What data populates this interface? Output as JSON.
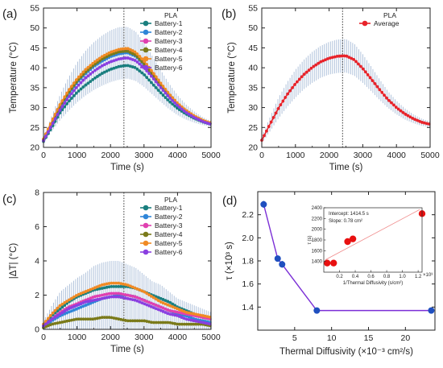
{
  "colors": {
    "battery_1": "#1a7f7f",
    "battery_2": "#2f86d8",
    "battery_3": "#e040b0",
    "battery_4": "#7a7a1a",
    "battery_5": "#f08a24",
    "battery_6": "#8a3fe0",
    "average": "#e8232a",
    "errorbar": "#a9bdd8",
    "panel_d_line": "#7b2fd6",
    "panel_d_marker": "#1f4fbf",
    "inset_points": "#e81010",
    "inset_line": "#f08c8c"
  },
  "chart_data": [
    {
      "panel": "(a)",
      "type": "line",
      "legend_title": "PLA",
      "legend_placement": "top-right",
      "xlabel": "Time (s)",
      "ylabel": "Temperature (°C)",
      "xlim": [
        0,
        5000
      ],
      "ylim": [
        20,
        55
      ],
      "xticks": [
        "0",
        "1000",
        "2000",
        "3000",
        "4000",
        "5000"
      ],
      "yticks": [
        "20",
        "25",
        "30",
        "35",
        "40",
        "45",
        "50",
        "55"
      ],
      "vline_x": 2400,
      "x": [
        0,
        250,
        500,
        750,
        1000,
        1250,
        1500,
        1750,
        2000,
        2250,
        2500,
        2750,
        3000,
        3250,
        3500,
        3750,
        4000,
        4250,
        4500,
        4750,
        5000
      ],
      "series": [
        {
          "name": "Battery-1",
          "color_key": "battery_1",
          "values": [
            21.5,
            25.0,
            28.8,
            31.5,
            33.8,
            35.6,
            37.2,
            38.6,
            39.6,
            40.3,
            40.6,
            40.0,
            38.3,
            36.0,
            33.7,
            31.6,
            29.8,
            28.4,
            27.3,
            26.4,
            25.8
          ]
        },
        {
          "name": "Battery-2",
          "color_key": "battery_2",
          "values": [
            21.8,
            26.0,
            30.1,
            33.4,
            36.2,
            38.5,
            40.3,
            41.7,
            42.8,
            43.5,
            43.8,
            42.9,
            40.8,
            38.2,
            35.5,
            32.9,
            30.7,
            29.0,
            27.6,
            26.6,
            25.9
          ]
        },
        {
          "name": "Battery-3",
          "color_key": "battery_3",
          "values": [
            22.0,
            26.4,
            30.6,
            34.0,
            36.9,
            39.2,
            41.0,
            42.5,
            43.6,
            44.3,
            44.5,
            43.5,
            41.3,
            38.6,
            35.8,
            33.1,
            30.9,
            29.1,
            27.7,
            26.7,
            26.0
          ]
        },
        {
          "name": "Battery-4",
          "color_key": "battery_4",
          "values": [
            21.9,
            26.2,
            30.4,
            33.8,
            36.6,
            38.9,
            40.7,
            42.2,
            43.3,
            44.0,
            44.2,
            43.2,
            41.0,
            38.3,
            35.6,
            33.0,
            30.8,
            29.0,
            27.7,
            26.6,
            25.9
          ]
        },
        {
          "name": "Battery-5",
          "color_key": "battery_5",
          "values": [
            22.1,
            26.6,
            30.9,
            34.3,
            37.2,
            39.5,
            41.3,
            42.8,
            43.9,
            44.6,
            44.9,
            43.9,
            41.7,
            39.0,
            36.1,
            33.4,
            31.1,
            29.3,
            27.9,
            26.8,
            26.1
          ]
        },
        {
          "name": "Battery-6",
          "color_key": "battery_6",
          "values": [
            21.7,
            25.6,
            29.5,
            32.6,
            35.2,
            37.4,
            39.1,
            40.5,
            41.5,
            42.2,
            42.5,
            41.8,
            40.0,
            37.6,
            35.0,
            32.6,
            30.5,
            28.8,
            27.5,
            26.5,
            25.8
          ]
        }
      ],
      "errorbar": {
        "x": [
          0,
          250,
          500,
          750,
          1000,
          1250,
          1500,
          1750,
          2000,
          2250,
          2500,
          2750,
          3000,
          3250,
          3500,
          3750,
          4000,
          4250,
          4500,
          4750,
          5000
        ],
        "mean": [
          21.8,
          26.0,
          30.1,
          33.4,
          36.3,
          38.6,
          40.4,
          41.8,
          42.9,
          43.6,
          43.8,
          42.9,
          40.8,
          38.1,
          35.4,
          32.8,
          30.6,
          28.9,
          27.6,
          26.6,
          25.9
        ],
        "err": [
          0.8,
          2.0,
          3.2,
          4.2,
          5.0,
          5.6,
          6.0,
          6.3,
          6.5,
          6.6,
          6.5,
          6.2,
          5.6,
          4.8,
          4.0,
          3.2,
          2.5,
          1.9,
          1.4,
          1.0,
          0.7
        ]
      }
    },
    {
      "panel": "(b)",
      "type": "line",
      "legend_title": "PLA",
      "legend_placement": "top-right",
      "xlabel": "Time (s)",
      "ylabel": "Temperature (°C)",
      "xlim": [
        0,
        5000
      ],
      "ylim": [
        20,
        55
      ],
      "xticks": [
        "0",
        "1000",
        "2000",
        "3000",
        "4000",
        "5000"
      ],
      "yticks": [
        "20",
        "25",
        "30",
        "35",
        "40",
        "45",
        "50",
        "55"
      ],
      "vline_x": 2400,
      "x": [
        0,
        250,
        500,
        750,
        1000,
        1250,
        1500,
        1750,
        2000,
        2250,
        2500,
        2750,
        3000,
        3250,
        3500,
        3750,
        4000,
        4250,
        4500,
        4750,
        5000
      ],
      "series": [
        {
          "name": "Average",
          "color_key": "average",
          "values": [
            21.8,
            25.9,
            29.9,
            33.2,
            36.0,
            38.3,
            40.1,
            41.5,
            42.4,
            42.9,
            43.0,
            42.0,
            39.8,
            37.2,
            34.5,
            32.0,
            30.0,
            28.4,
            27.2,
            26.3,
            25.8
          ]
        }
      ],
      "errorbar": {
        "x": [
          0,
          250,
          500,
          750,
          1000,
          1250,
          1500,
          1750,
          2000,
          2250,
          2500,
          2750,
          3000,
          3250,
          3500,
          3750,
          4000,
          4250,
          4500,
          4750,
          5000
        ],
        "mean": [
          21.8,
          25.9,
          29.9,
          33.2,
          36.0,
          38.3,
          40.1,
          41.5,
          42.4,
          42.9,
          43.0,
          42.0,
          39.8,
          37.2,
          34.5,
          32.0,
          30.0,
          28.4,
          27.2,
          26.3,
          25.8
        ],
        "err": [
          0.8,
          1.8,
          2.6,
          3.1,
          3.5,
          3.7,
          3.9,
          4.0,
          4.1,
          4.2,
          4.2,
          4.0,
          3.6,
          3.1,
          2.6,
          2.1,
          1.7,
          1.4,
          1.1,
          0.9,
          0.7
        ]
      }
    },
    {
      "panel": "(c)",
      "type": "line",
      "legend_title": "PLA",
      "legend_placement": "top-right",
      "xlabel": "Time (s)",
      "ylabel": "|ΔT| (°C)",
      "xlim": [
        0,
        5000
      ],
      "ylim": [
        0,
        8
      ],
      "xticks": [
        "0",
        "1000",
        "2000",
        "3000",
        "4000",
        "5000"
      ],
      "yticks": [
        "0",
        "2",
        "4",
        "6",
        "8"
      ],
      "vline_x": 2400,
      "x": [
        0,
        250,
        500,
        750,
        1000,
        1250,
        1500,
        1750,
        2000,
        2250,
        2500,
        2750,
        3000,
        3250,
        3500,
        3750,
        4000,
        4250,
        4500,
        4750,
        5000
      ],
      "series": [
        {
          "name": "Battery-1",
          "color_key": "battery_1",
          "values": [
            0.2,
            0.8,
            1.2,
            1.6,
            1.9,
            2.1,
            2.3,
            2.4,
            2.5,
            2.5,
            2.5,
            2.4,
            2.2,
            2.0,
            1.8,
            1.6,
            1.3,
            1.1,
            0.9,
            0.7,
            0.6
          ]
        },
        {
          "name": "Battery-2",
          "color_key": "battery_2",
          "values": [
            0.1,
            0.5,
            0.8,
            1.0,
            1.2,
            1.4,
            1.6,
            1.8,
            1.9,
            2.0,
            2.0,
            1.9,
            1.7,
            1.5,
            1.3,
            1.1,
            0.9,
            0.8,
            0.6,
            0.5,
            0.4
          ]
        },
        {
          "name": "Battery-3",
          "color_key": "battery_3",
          "values": [
            0.2,
            0.6,
            1.0,
            1.3,
            1.5,
            1.7,
            1.9,
            2.0,
            2.1,
            2.1,
            2.0,
            1.9,
            1.7,
            1.5,
            1.3,
            1.1,
            1.0,
            0.9,
            0.8,
            0.7,
            0.6
          ]
        },
        {
          "name": "Battery-4",
          "color_key": "battery_4",
          "values": [
            0.1,
            0.3,
            0.4,
            0.5,
            0.6,
            0.6,
            0.6,
            0.7,
            0.7,
            0.6,
            0.5,
            0.5,
            0.5,
            0.4,
            0.4,
            0.4,
            0.3,
            0.3,
            0.3,
            0.3,
            0.2
          ]
        },
        {
          "name": "Battery-5",
          "color_key": "battery_5",
          "values": [
            0.3,
            0.9,
            1.4,
            1.7,
            2.0,
            2.2,
            2.4,
            2.6,
            2.7,
            2.7,
            2.6,
            2.4,
            2.2,
            1.9,
            1.6,
            1.4,
            1.2,
            1.0,
            0.9,
            0.8,
            0.7
          ]
        },
        {
          "name": "Battery-6",
          "color_key": "battery_6",
          "values": [
            0.2,
            0.6,
            0.9,
            1.2,
            1.4,
            1.6,
            1.7,
            1.8,
            1.9,
            1.9,
            1.8,
            1.7,
            1.5,
            1.3,
            1.1,
            0.9,
            0.8,
            0.6,
            0.5,
            0.4,
            0.3
          ]
        }
      ],
      "errorbar": {
        "x": [
          0,
          250,
          500,
          750,
          1000,
          1250,
          1500,
          1750,
          2000,
          2250,
          2500,
          2750,
          3000,
          3250,
          3500,
          3750,
          4000,
          4250,
          4500,
          4750,
          5000
        ],
        "mean": [
          0.2,
          0.6,
          1.0,
          1.2,
          1.4,
          1.6,
          1.8,
          1.9,
          2.0,
          2.0,
          1.9,
          1.8,
          1.6,
          1.4,
          1.3,
          1.1,
          0.9,
          0.8,
          0.7,
          0.6,
          0.5
        ],
        "err": [
          0.3,
          0.8,
          1.2,
          1.4,
          1.6,
          1.7,
          1.9,
          2.0,
          2.0,
          2.0,
          1.9,
          1.8,
          1.6,
          1.4,
          1.3,
          1.1,
          0.9,
          0.8,
          0.7,
          0.6,
          0.5
        ]
      }
    },
    {
      "panel": "(d)",
      "type": "line",
      "xlabel": "Thermal Diffusivity (×10⁻³ cm²/s)",
      "ylabel": "τ (×10³ s)",
      "xlim": [
        0,
        24
      ],
      "ylim": [
        1.2,
        2.4
      ],
      "xticks": [
        "5",
        "10",
        "15",
        "20"
      ],
      "yticks": [
        "1.4",
        "1.6",
        "1.8",
        "2.0",
        "2.2"
      ],
      "x": [
        0.8,
        2.7,
        3.3,
        8.0,
        23.5
      ],
      "values": [
        2.29,
        1.82,
        1.77,
        1.37,
        1.37
      ],
      "y_err": [
        0.03,
        0.02,
        0.03,
        0.01,
        0.01
      ],
      "inset": {
        "type": "scatter",
        "xlabel": "1/Thermal Diffusivity (s/cm²)",
        "ylabel": "τ (s)",
        "x_multiplier": "×10³",
        "xlim": [
          0,
          1.25
        ],
        "ylim": [
          1200,
          2400
        ],
        "xticks": [
          "0.2",
          "0.4",
          "0.6",
          "0.8",
          "1.0",
          "1.2"
        ],
        "yticks": [
          "1400",
          "1600",
          "1800",
          "2000",
          "2200",
          "2400"
        ],
        "intercept_text": "Intercept: 1414.5 s",
        "slope_text": "Slope: 0.78 cm²",
        "x": [
          0.043,
          0.125,
          0.303,
          0.37,
          1.25
        ],
        "values": [
          1370,
          1370,
          1770,
          1820,
          2290
        ],
        "fit": {
          "intercept": 1414.5,
          "slope": 0.78
        }
      }
    }
  ]
}
